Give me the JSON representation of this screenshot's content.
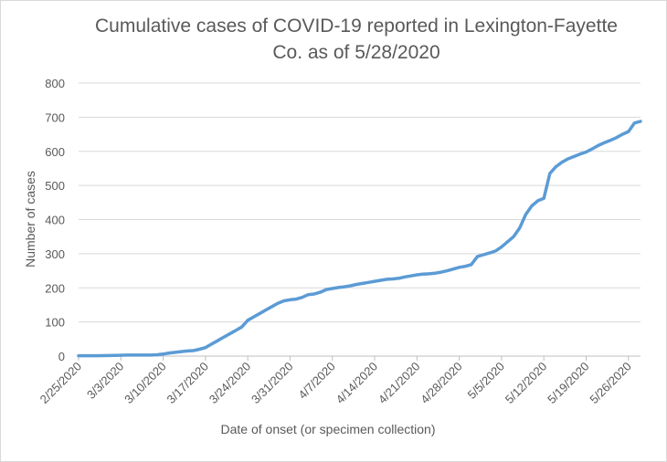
{
  "chart_data": {
    "type": "line",
    "title": "Cumulative cases of COVID-19 reported in Lexington-Fayette Co.  as of 5/28/2020",
    "title_lines": [
      "Cumulative cases of COVID-19 reported in Lexington-Fayette",
      "Co.  as of 5/28/2020"
    ],
    "xlabel": "Date of onset (or specimen collection)",
    "ylabel": "Number of cases",
    "ylim": [
      0,
      800
    ],
    "y_ticks": [
      0,
      100,
      200,
      300,
      400,
      500,
      600,
      700,
      800
    ],
    "x_tick_labels": [
      "2/25/2020",
      "3/3/2020",
      "3/10/2020",
      "3/17/2020",
      "3/24/2020",
      "3/31/2020",
      "4/7/2020",
      "4/14/2020",
      "4/21/2020",
      "4/28/2020",
      "5/5/2020",
      "5/12/2020",
      "5/19/2020",
      "5/26/2020"
    ],
    "x_range": [
      "2/25/2020",
      "5/28/2020"
    ],
    "grid": true,
    "legend": "none",
    "line_color": "#5b9bd5",
    "series": [
      {
        "points": [
          [
            "2/25/2020",
            1
          ],
          [
            "2/28/2020",
            1
          ],
          [
            "3/2/2020",
            2
          ],
          [
            "3/4/2020",
            3
          ],
          [
            "3/6/2020",
            3
          ],
          [
            "3/8/2020",
            3
          ],
          [
            "3/9/2020",
            4
          ],
          [
            "3/10/2020",
            6
          ],
          [
            "3/11/2020",
            9
          ],
          [
            "3/12/2020",
            11
          ],
          [
            "3/13/2020",
            13
          ],
          [
            "3/14/2020",
            15
          ],
          [
            "3/15/2020",
            16
          ],
          [
            "3/16/2020",
            20
          ],
          [
            "3/17/2020",
            25
          ],
          [
            "3/18/2020",
            35
          ],
          [
            "3/19/2020",
            45
          ],
          [
            "3/20/2020",
            55
          ],
          [
            "3/21/2020",
            65
          ],
          [
            "3/22/2020",
            75
          ],
          [
            "3/23/2020",
            85
          ],
          [
            "3/24/2020",
            105
          ],
          [
            "3/25/2020",
            115
          ],
          [
            "3/26/2020",
            125
          ],
          [
            "3/27/2020",
            135
          ],
          [
            "3/28/2020",
            145
          ],
          [
            "3/29/2020",
            155
          ],
          [
            "3/30/2020",
            162
          ],
          [
            "3/31/2020",
            165
          ],
          [
            "4/1/2020",
            167
          ],
          [
            "4/2/2020",
            172
          ],
          [
            "4/3/2020",
            180
          ],
          [
            "4/4/2020",
            182
          ],
          [
            "4/5/2020",
            187
          ],
          [
            "4/6/2020",
            195
          ],
          [
            "4/7/2020",
            198
          ],
          [
            "4/8/2020",
            201
          ],
          [
            "4/9/2020",
            203
          ],
          [
            "4/10/2020",
            206
          ],
          [
            "4/11/2020",
            210
          ],
          [
            "4/12/2020",
            213
          ],
          [
            "4/13/2020",
            216
          ],
          [
            "4/14/2020",
            219
          ],
          [
            "4/15/2020",
            222
          ],
          [
            "4/16/2020",
            225
          ],
          [
            "4/17/2020",
            226
          ],
          [
            "4/18/2020",
            228
          ],
          [
            "4/19/2020",
            232
          ],
          [
            "4/20/2020",
            235
          ],
          [
            "4/21/2020",
            238
          ],
          [
            "4/22/2020",
            240
          ],
          [
            "4/23/2020",
            241
          ],
          [
            "4/24/2020",
            243
          ],
          [
            "4/25/2020",
            246
          ],
          [
            "4/26/2020",
            250
          ],
          [
            "4/27/2020",
            255
          ],
          [
            "4/28/2020",
            260
          ],
          [
            "4/29/2020",
            263
          ],
          [
            "4/30/2020",
            268
          ],
          [
            "5/1/2020",
            292
          ],
          [
            "5/2/2020",
            297
          ],
          [
            "5/3/2020",
            302
          ],
          [
            "5/4/2020",
            308
          ],
          [
            "5/5/2020",
            320
          ],
          [
            "5/6/2020",
            335
          ],
          [
            "5/7/2020",
            350
          ],
          [
            "5/8/2020",
            375
          ],
          [
            "5/9/2020",
            415
          ],
          [
            "5/10/2020",
            440
          ],
          [
            "5/11/2020",
            455
          ],
          [
            "5/12/2020",
            462
          ],
          [
            "5/13/2020",
            535
          ],
          [
            "5/14/2020",
            555
          ],
          [
            "5/15/2020",
            568
          ],
          [
            "5/16/2020",
            578
          ],
          [
            "5/17/2020",
            585
          ],
          [
            "5/18/2020",
            592
          ],
          [
            "5/19/2020",
            598
          ],
          [
            "5/20/2020",
            607
          ],
          [
            "5/21/2020",
            617
          ],
          [
            "5/22/2020",
            625
          ],
          [
            "5/23/2020",
            632
          ],
          [
            "5/24/2020",
            640
          ],
          [
            "5/25/2020",
            650
          ],
          [
            "5/26/2020",
            658
          ],
          [
            "5/27/2020",
            683
          ],
          [
            "5/28/2020",
            688
          ]
        ]
      }
    ]
  }
}
